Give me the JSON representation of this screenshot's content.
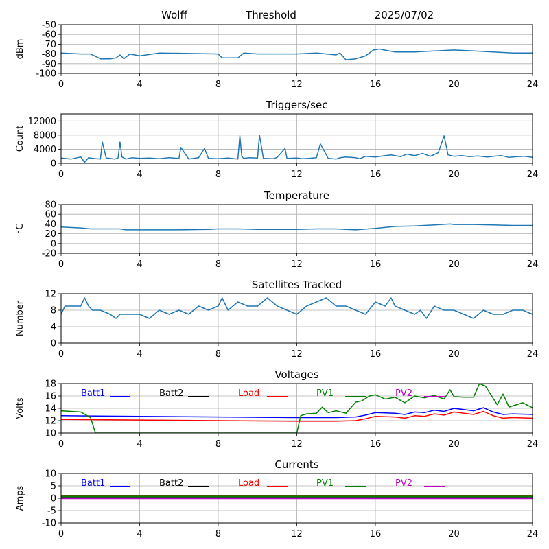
{
  "header": {
    "station": "Wolff",
    "mode": "Threshold",
    "date": "2025/07/02"
  },
  "x_ticks": [
    "0",
    "4",
    "8",
    "12",
    "16",
    "20",
    "24"
  ],
  "chart_data": [
    {
      "type": "line",
      "title": "",
      "xlabel": "",
      "ylabel": "dBm",
      "xlim": [
        0,
        24
      ],
      "ylim": [
        -100,
        -50
      ],
      "yticks": [
        "-50",
        "-60",
        "-70",
        "-80",
        "-90",
        "-100"
      ],
      "grid": true,
      "series": [
        {
          "color": "#1f77b4",
          "x": [
            0,
            1,
            1.5,
            2,
            2.5,
            2.8,
            3.0,
            3.2,
            3.5,
            4,
            5,
            8,
            8.2,
            9,
            9.3,
            10,
            12,
            13,
            13.5,
            14,
            14.2,
            14.5,
            15,
            15.5,
            15.9,
            16.2,
            17,
            18,
            19,
            20,
            21,
            22,
            23,
            24
          ],
          "y": [
            -79,
            -80,
            -80,
            -85,
            -85,
            -84,
            -81,
            -85,
            -80,
            -82,
            -79,
            -80,
            -84,
            -84,
            -79,
            -80,
            -80,
            -79,
            -80,
            -81,
            -79,
            -86,
            -85,
            -82,
            -76,
            -75,
            -78,
            -78,
            -77,
            -76,
            -77,
            -78,
            -79,
            -79
          ]
        }
      ]
    },
    {
      "type": "line",
      "title": "Triggers/sec",
      "xlabel": "",
      "ylabel": "Count",
      "xlim": [
        0,
        24
      ],
      "ylim": [
        0,
        14000
      ],
      "yticks": [
        "0",
        "4000",
        "8000",
        "12000"
      ],
      "grid": true,
      "series": [
        {
          "color": "#1f77b4",
          "x": [
            0,
            0.5,
            1,
            1.2,
            1.4,
            1.6,
            2,
            2.1,
            2.3,
            2.5,
            2.7,
            2.9,
            3.0,
            3.1,
            3.3,
            3.6,
            4,
            4.5,
            5,
            5.5,
            6,
            6.1,
            6.5,
            7,
            7.3,
            7.5,
            8,
            8.5,
            9.0,
            9.1,
            9.2,
            9.3,
            9.6,
            10,
            10.1,
            10.3,
            10.8,
            11,
            11.4,
            11.5,
            12,
            12.3,
            12.6,
            13,
            13.2,
            13.6,
            14,
            14.2,
            14.5,
            15,
            15.2,
            15.5,
            16,
            16.5,
            16.8,
            17.3,
            17.6,
            18,
            18.4,
            18.8,
            19.2,
            19.5,
            19.7,
            20,
            20.4,
            20.8,
            21.2,
            21.7,
            22,
            22.4,
            22.8,
            23.2,
            23.6,
            24
          ],
          "y": [
            1500,
            1200,
            1800,
            300,
            1600,
            1400,
            1200,
            6000,
            1500,
            1400,
            1200,
            1500,
            6000,
            1800,
            1200,
            1600,
            1400,
            1500,
            1300,
            1600,
            1400,
            4500,
            1200,
            1600,
            4200,
            1400,
            1300,
            1500,
            1200,
            7800,
            2000,
            1400,
            1600,
            1500,
            8000,
            1400,
            1300,
            1700,
            4200,
            1400,
            1500,
            1300,
            1400,
            1600,
            5500,
            1400,
            1200,
            1600,
            1800,
            1600,
            1300,
            2000,
            1800,
            2200,
            2400,
            1900,
            2600,
            2200,
            2800,
            2000,
            3000,
            7800,
            2400,
            2000,
            2200,
            1900,
            2100,
            1800,
            2000,
            2200,
            1700,
            1900,
            2000,
            1700
          ]
        }
      ]
    },
    {
      "type": "line",
      "title": "Temperature",
      "xlabel": "",
      "ylabel": "°C",
      "xlim": [
        0,
        24
      ],
      "ylim": [
        -20,
        80
      ],
      "yticks": [
        "-20",
        "0",
        "20",
        "40",
        "60",
        "80"
      ],
      "grid": true,
      "series": [
        {
          "color": "#1f77b4",
          "x": [
            0,
            1,
            1.5,
            3,
            3.3,
            6,
            7.5,
            8,
            9,
            10,
            12,
            13,
            14,
            15,
            16,
            17,
            18,
            19,
            19.8,
            20,
            21,
            22,
            23,
            24
          ],
          "y": [
            34,
            32,
            30,
            30,
            28,
            28,
            29,
            30,
            30,
            29,
            29,
            30,
            30,
            28,
            31,
            35,
            36,
            38,
            40,
            39,
            39,
            38,
            37,
            37
          ]
        }
      ]
    },
    {
      "type": "line",
      "title": "Satellites Tracked",
      "xlabel": "",
      "ylabel": "Number",
      "xlim": [
        0,
        24
      ],
      "ylim": [
        0,
        12
      ],
      "yticks": [
        "0",
        "4",
        "8",
        "12"
      ],
      "grid": true,
      "series": [
        {
          "color": "#1f77b4",
          "x": [
            0,
            0.2,
            0.5,
            1.0,
            1.2,
            1.4,
            1.6,
            2.0,
            2.5,
            2.8,
            3.0,
            3.5,
            4.0,
            4.5,
            5.0,
            5.5,
            6.0,
            6.5,
            7.0,
            7.5,
            8.0,
            8.2,
            8.5,
            9.0,
            9.5,
            10.0,
            10.5,
            11.0,
            11.5,
            12.0,
            12.5,
            13.0,
            13.5,
            14.0,
            14.5,
            15.0,
            15.5,
            16.0,
            16.5,
            16.8,
            17.0,
            17.5,
            18.0,
            18.3,
            18.6,
            19.0,
            19.5,
            20.0,
            20.5,
            21.0,
            21.5,
            22.0,
            22.5,
            23.0,
            23.5,
            24.0
          ],
          "y": [
            7,
            9,
            9,
            9,
            11,
            9,
            8,
            8,
            7,
            6,
            7,
            7,
            7,
            6,
            8,
            7,
            8,
            7,
            9,
            8,
            9,
            11,
            8,
            10,
            9,
            9,
            11,
            9,
            8,
            7,
            9,
            10,
            11,
            9,
            9,
            8,
            7,
            10,
            9,
            11,
            9,
            8,
            7,
            8,
            6,
            9,
            8,
            8,
            7,
            6,
            8,
            7,
            7,
            8,
            8,
            7
          ]
        }
      ]
    },
    {
      "type": "line",
      "title": "Voltages",
      "xlabel": "",
      "ylabel": "Volts",
      "xlim": [
        0,
        24
      ],
      "ylim": [
        10,
        18
      ],
      "yticks": [
        "10",
        "12",
        "14",
        "16",
        "18"
      ],
      "grid": true,
      "legend": [
        "Batt1",
        "Batt2",
        "Load",
        "PV1",
        "PV2"
      ],
      "series": [
        {
          "name": "Batt1",
          "color": "#0000ff",
          "x": [
            0,
            4,
            8,
            12,
            14,
            15,
            15.5,
            16,
            17,
            17.5,
            18,
            18.5,
            19,
            19.5,
            20,
            21,
            21.5,
            22,
            22.5,
            23,
            24
          ],
          "y": [
            12.8,
            12.7,
            12.6,
            12.5,
            12.5,
            12.6,
            12.9,
            13.3,
            13.2,
            13.0,
            13.4,
            13.3,
            13.7,
            13.5,
            14.0,
            13.6,
            14.1,
            13.4,
            13.0,
            13.1,
            13.0
          ]
        },
        {
          "name": "Batt2",
          "color": "#000000",
          "x": [],
          "y": []
        },
        {
          "name": "Load",
          "color": "#ff0000",
          "x": [
            0,
            4,
            8,
            12,
            14,
            15,
            15.5,
            16,
            17,
            17.5,
            18,
            18.5,
            19,
            19.5,
            20,
            21,
            21.5,
            22,
            22.5,
            23,
            24
          ],
          "y": [
            12.2,
            12.1,
            12.0,
            11.9,
            11.9,
            12.0,
            12.3,
            12.7,
            12.6,
            12.4,
            12.8,
            12.7,
            13.1,
            12.9,
            13.4,
            13.0,
            13.5,
            12.8,
            12.4,
            12.5,
            12.4
          ]
        },
        {
          "name": "PV1",
          "color": "#008000",
          "x": [
            0,
            1,
            1.5,
            1.75,
            12,
            12.2,
            12.5,
            13,
            13.3,
            13.6,
            14,
            14.5,
            15,
            15.3,
            15.7,
            16,
            16.5,
            17,
            17.5,
            18,
            18.5,
            19,
            19.5,
            19.8,
            20,
            20.5,
            21,
            21.3,
            21.6,
            22,
            22.2,
            22.5,
            22.8,
            23,
            23.5,
            24
          ],
          "y": [
            13.6,
            13.4,
            12.5,
            10,
            10,
            12.8,
            13.1,
            13.2,
            14.2,
            13.3,
            13.6,
            13.2,
            15.0,
            15.2,
            16.0,
            16.2,
            15.5,
            15.8,
            14.9,
            16.0,
            15.7,
            16.1,
            15.5,
            17.0,
            15.9,
            15.8,
            15.8,
            18.0,
            17.6,
            15.6,
            14.6,
            16.3,
            14.2,
            14.4,
            14.9,
            14.1
          ]
        },
        {
          "name": "PV2",
          "color": "#c000c0",
          "x": [],
          "y": []
        }
      ]
    },
    {
      "type": "line",
      "title": "Currents",
      "xlabel": "",
      "ylabel": "Amps",
      "xlim": [
        0,
        24
      ],
      "ylim": [
        -10,
        10
      ],
      "yticks": [
        "-10",
        "-5",
        "0",
        "5",
        "10"
      ],
      "grid": true,
      "legend": [
        "Batt1",
        "Batt2",
        "Load",
        "PV1",
        "PV2"
      ],
      "series": [
        {
          "name": "Batt1",
          "color": "#0000ff",
          "x": [
            0,
            24
          ],
          "y": [
            0.5,
            0.5
          ]
        },
        {
          "name": "Batt2",
          "color": "#000000",
          "x": [
            0,
            24
          ],
          "y": [
            0.3,
            0.3
          ]
        },
        {
          "name": "Load",
          "color": "#ff0000",
          "x": [
            0,
            24
          ],
          "y": [
            1.0,
            1.0
          ]
        },
        {
          "name": "PV1",
          "color": "#008000",
          "x": [
            0,
            24
          ],
          "y": [
            0.7,
            0.7
          ]
        },
        {
          "name": "PV2",
          "color": "#c000c0",
          "x": [
            0,
            24
          ],
          "y": [
            0.0,
            0.0
          ]
        }
      ]
    }
  ]
}
